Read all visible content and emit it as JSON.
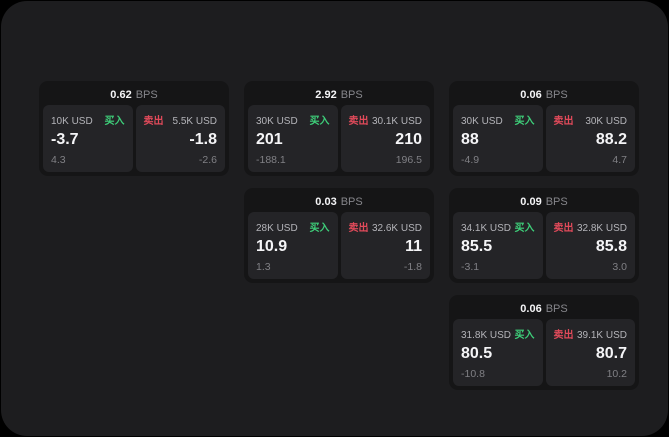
{
  "labels": {
    "bps_unit": "BPS",
    "buy": "买入",
    "sell": "卖出"
  },
  "colors": {
    "background": "#000000",
    "window": "#1d1d1f",
    "card": "#151516",
    "panel": "#242427",
    "buy": "#3ecf7a",
    "sell": "#e04a5a",
    "value_text": "#f5f5f7",
    "muted_text": "#86868b"
  },
  "cards": [
    {
      "bps": "0.62",
      "col": 1,
      "row": 1,
      "buy": {
        "amount": "10K USD",
        "value": "-3.7",
        "delta": "4.3"
      },
      "sell": {
        "amount": "5.5K USD",
        "value": "-1.8",
        "delta": "-2.6"
      }
    },
    {
      "bps": "2.92",
      "col": 2,
      "row": 1,
      "buy": {
        "amount": "30K USD",
        "value": "201",
        "delta": "-188.1"
      },
      "sell": {
        "amount": "30.1K USD",
        "value": "210",
        "delta": "196.5"
      }
    },
    {
      "bps": "0.06",
      "col": 3,
      "row": 1,
      "buy": {
        "amount": "30K USD",
        "value": "88",
        "delta": "-4.9"
      },
      "sell": {
        "amount": "30K USD",
        "value": "88.2",
        "delta": "4.7"
      }
    },
    {
      "bps": "0.03",
      "col": 2,
      "row": 2,
      "buy": {
        "amount": "28K USD",
        "value": "10.9",
        "delta": "1.3"
      },
      "sell": {
        "amount": "32.6K USD",
        "value": "11",
        "delta": "-1.8"
      }
    },
    {
      "bps": "0.09",
      "col": 3,
      "row": 2,
      "buy": {
        "amount": "34.1K USD",
        "value": "85.5",
        "delta": "-3.1"
      },
      "sell": {
        "amount": "32.8K USD",
        "value": "85.8",
        "delta": "3.0"
      }
    },
    {
      "bps": "0.06",
      "col": 3,
      "row": 3,
      "buy": {
        "amount": "31.8K USD",
        "value": "80.5",
        "delta": "-10.8"
      },
      "sell": {
        "amount": "39.1K USD",
        "value": "80.7",
        "delta": "10.2"
      }
    }
  ]
}
